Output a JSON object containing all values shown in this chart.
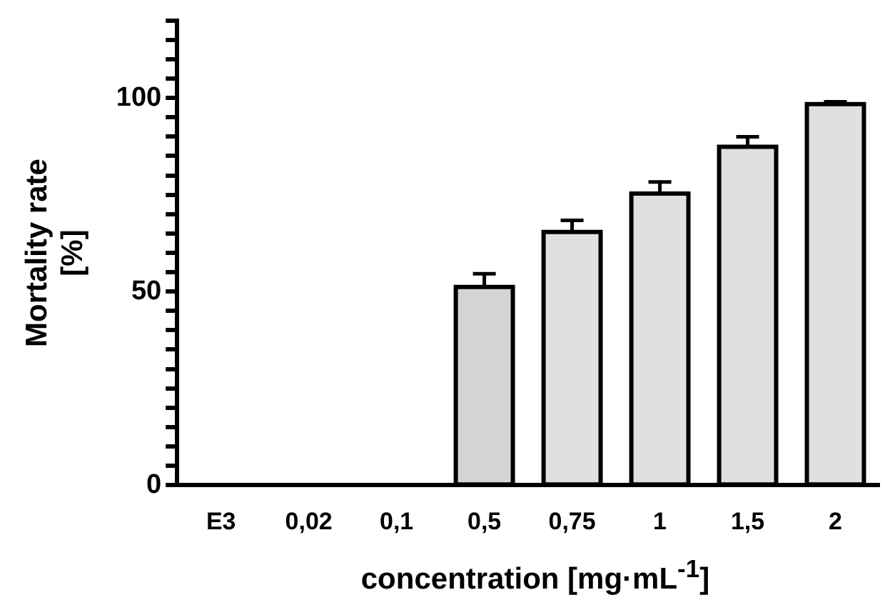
{
  "chart_data": {
    "type": "bar",
    "xlabel": "concentration [mg·mL$^{-1}$]",
    "ylabel": "Mortality rate\n[%]",
    "categories": [
      "E3",
      "0,02",
      "0,1",
      "0,5",
      "0,75",
      "1",
      "1,5",
      "2"
    ],
    "values": [
      0,
      0,
      0,
      51.2,
      65.4,
      75.3,
      87.4,
      98.4
    ],
    "errors": [
      null,
      null,
      null,
      [
        51.2,
        54.6
      ],
      [
        65.4,
        68.4
      ],
      [
        75.3,
        78.3
      ],
      [
        87.4,
        90
      ],
      [
        98.4,
        99
      ]
    ],
    "colors": [
      "#e0e0e0",
      "#e0e0e0",
      "#e0e0e0",
      "#d4d4d4",
      "#e0e0e0",
      "#e0e0e0",
      "#e0e0e0",
      "#e0e0e0"
    ],
    "ylim": [
      0,
      120
    ],
    "yticks": [
      0,
      {
        "value": 5,
        "label": null
      },
      {
        "value": 10,
        "label": null
      },
      {
        "value": 15,
        "label": null
      },
      {
        "value": 20,
        "label": null
      },
      {
        "value": 25,
        "label": null
      },
      {
        "value": 30,
        "label": null
      },
      {
        "value": 35,
        "label": null
      },
      {
        "value": 40,
        "label": null
      },
      {
        "value": 45,
        "label": null
      },
      50,
      {
        "value": 55,
        "label": null
      },
      {
        "value": 60,
        "label": null
      },
      {
        "value": 65,
        "label": null
      },
      {
        "value": 70,
        "label": null
      },
      {
        "value": 75,
        "label": null
      },
      {
        "value": 80,
        "label": null
      },
      {
        "value": 85,
        "label": null
      },
      {
        "value": 90,
        "label": null
      },
      {
        "value": 95,
        "label": null
      },
      100,
      {
        "value": 105,
        "label": null
      },
      {
        "value": 110,
        "label": null
      },
      {
        "value": 115,
        "label": null
      },
      {
        "value": 120,
        "label": null
      }
    ],
    "grid": false,
    "legend": false
  }
}
